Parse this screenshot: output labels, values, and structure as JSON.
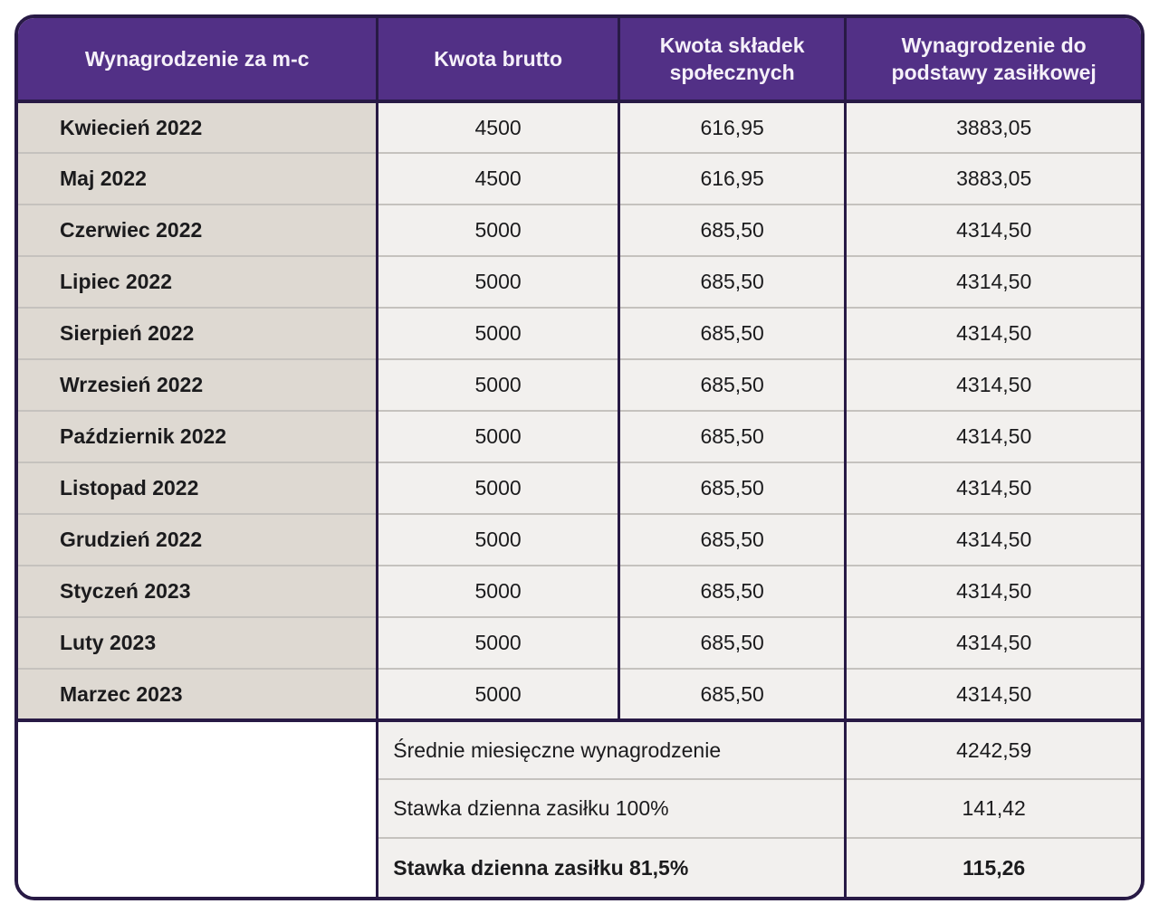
{
  "chart_data": {
    "type": "table",
    "columns": [
      "Wynagrodzenie za m-c",
      "Kwota brutto",
      "Kwota składek społecznych",
      "Wynagrodzenie do podstawy zasiłkowej"
    ],
    "rows": [
      [
        "Kwiecień 2022",
        "4500",
        "616,95",
        "3883,05"
      ],
      [
        "Maj 2022",
        "4500",
        "616,95",
        "3883,05"
      ],
      [
        "Czerwiec 2022",
        "5000",
        "685,50",
        "4314,50"
      ],
      [
        "Lipiec 2022",
        "5000",
        "685,50",
        "4314,50"
      ],
      [
        "Sierpień 2022",
        "5000",
        "685,50",
        "4314,50"
      ],
      [
        "Wrzesień 2022",
        "5000",
        "685,50",
        "4314,50"
      ],
      [
        "Październik 2022",
        "5000",
        "685,50",
        "4314,50"
      ],
      [
        "Listopad 2022",
        "5000",
        "685,50",
        "4314,50"
      ],
      [
        "Grudzień 2022",
        "5000",
        "685,50",
        "4314,50"
      ],
      [
        "Styczeń 2023",
        "5000",
        "685,50",
        "4314,50"
      ],
      [
        "Luty 2023",
        "5000",
        "685,50",
        "4314,50"
      ],
      [
        "Marzec 2023",
        "5000",
        "685,50",
        "4314,50"
      ]
    ],
    "summary_rows": [
      {
        "label": "Średnie miesięczne wynagrodzenie",
        "value": "4242,59",
        "bold": false
      },
      {
        "label": "Stawka dzienna zasiłku 100%",
        "value": "141,42",
        "bold": false
      },
      {
        "label": "Stawka dzienna zasiłku 81,5%",
        "value": "115,26",
        "bold": true
      }
    ]
  },
  "colors": {
    "header_bg": "#523086",
    "header_text": "#f5f0f9",
    "grid_dark": "#281a45",
    "month_column_bg": "#ded9d2",
    "cell_bg": "#f2f0ee",
    "row_divider": "#c5c2be",
    "text": "#1b1b1d",
    "empty_cell_bg": "#ffffff"
  }
}
